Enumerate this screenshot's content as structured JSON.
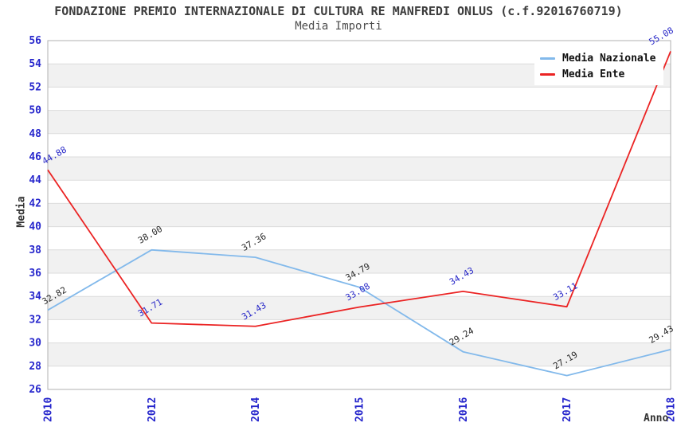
{
  "header": {
    "title": "FONDAZIONE PREMIO INTERNAZIONALE DI CULTURA RE MANFREDI ONLUS (c.f.92016760719)",
    "subtitle": "Media Importi"
  },
  "chart_data": {
    "type": "line",
    "title": "FONDAZIONE PREMIO INTERNAZIONALE DI CULTURA RE MANFREDI ONLUS (c.f.92016760719)",
    "subtitle": "Media Importi",
    "xlabel": "Anno",
    "ylabel": "Media",
    "categories": [
      "2010",
      "2012",
      "2014",
      "2015",
      "2016",
      "2017",
      "2018"
    ],
    "series": [
      {
        "name": "Media Nazionale",
        "color": "#82B9EB",
        "label_color": "#2B2B2B",
        "values": [
          32.82,
          38.0,
          37.36,
          34.79,
          29.24,
          27.19,
          29.43
        ]
      },
      {
        "name": "Media Ente",
        "color": "#EB2323",
        "label_color": "#2929C8",
        "values": [
          44.88,
          31.71,
          31.43,
          33.08,
          34.43,
          33.11,
          55.08
        ]
      }
    ],
    "ylim": [
      26,
      56
    ],
    "ytick_step": 2,
    "grid": "horizontal-bands",
    "legend_position": "top-right",
    "value_label_decimals": 2
  },
  "styles": {
    "tick_color": "#2626CC",
    "grid_line_color": "#DCDCDC",
    "plot_border_color": "#B0B0B0",
    "band_alt_color": "#F1F1F1",
    "band_base_color": "#FFFFFF"
  }
}
